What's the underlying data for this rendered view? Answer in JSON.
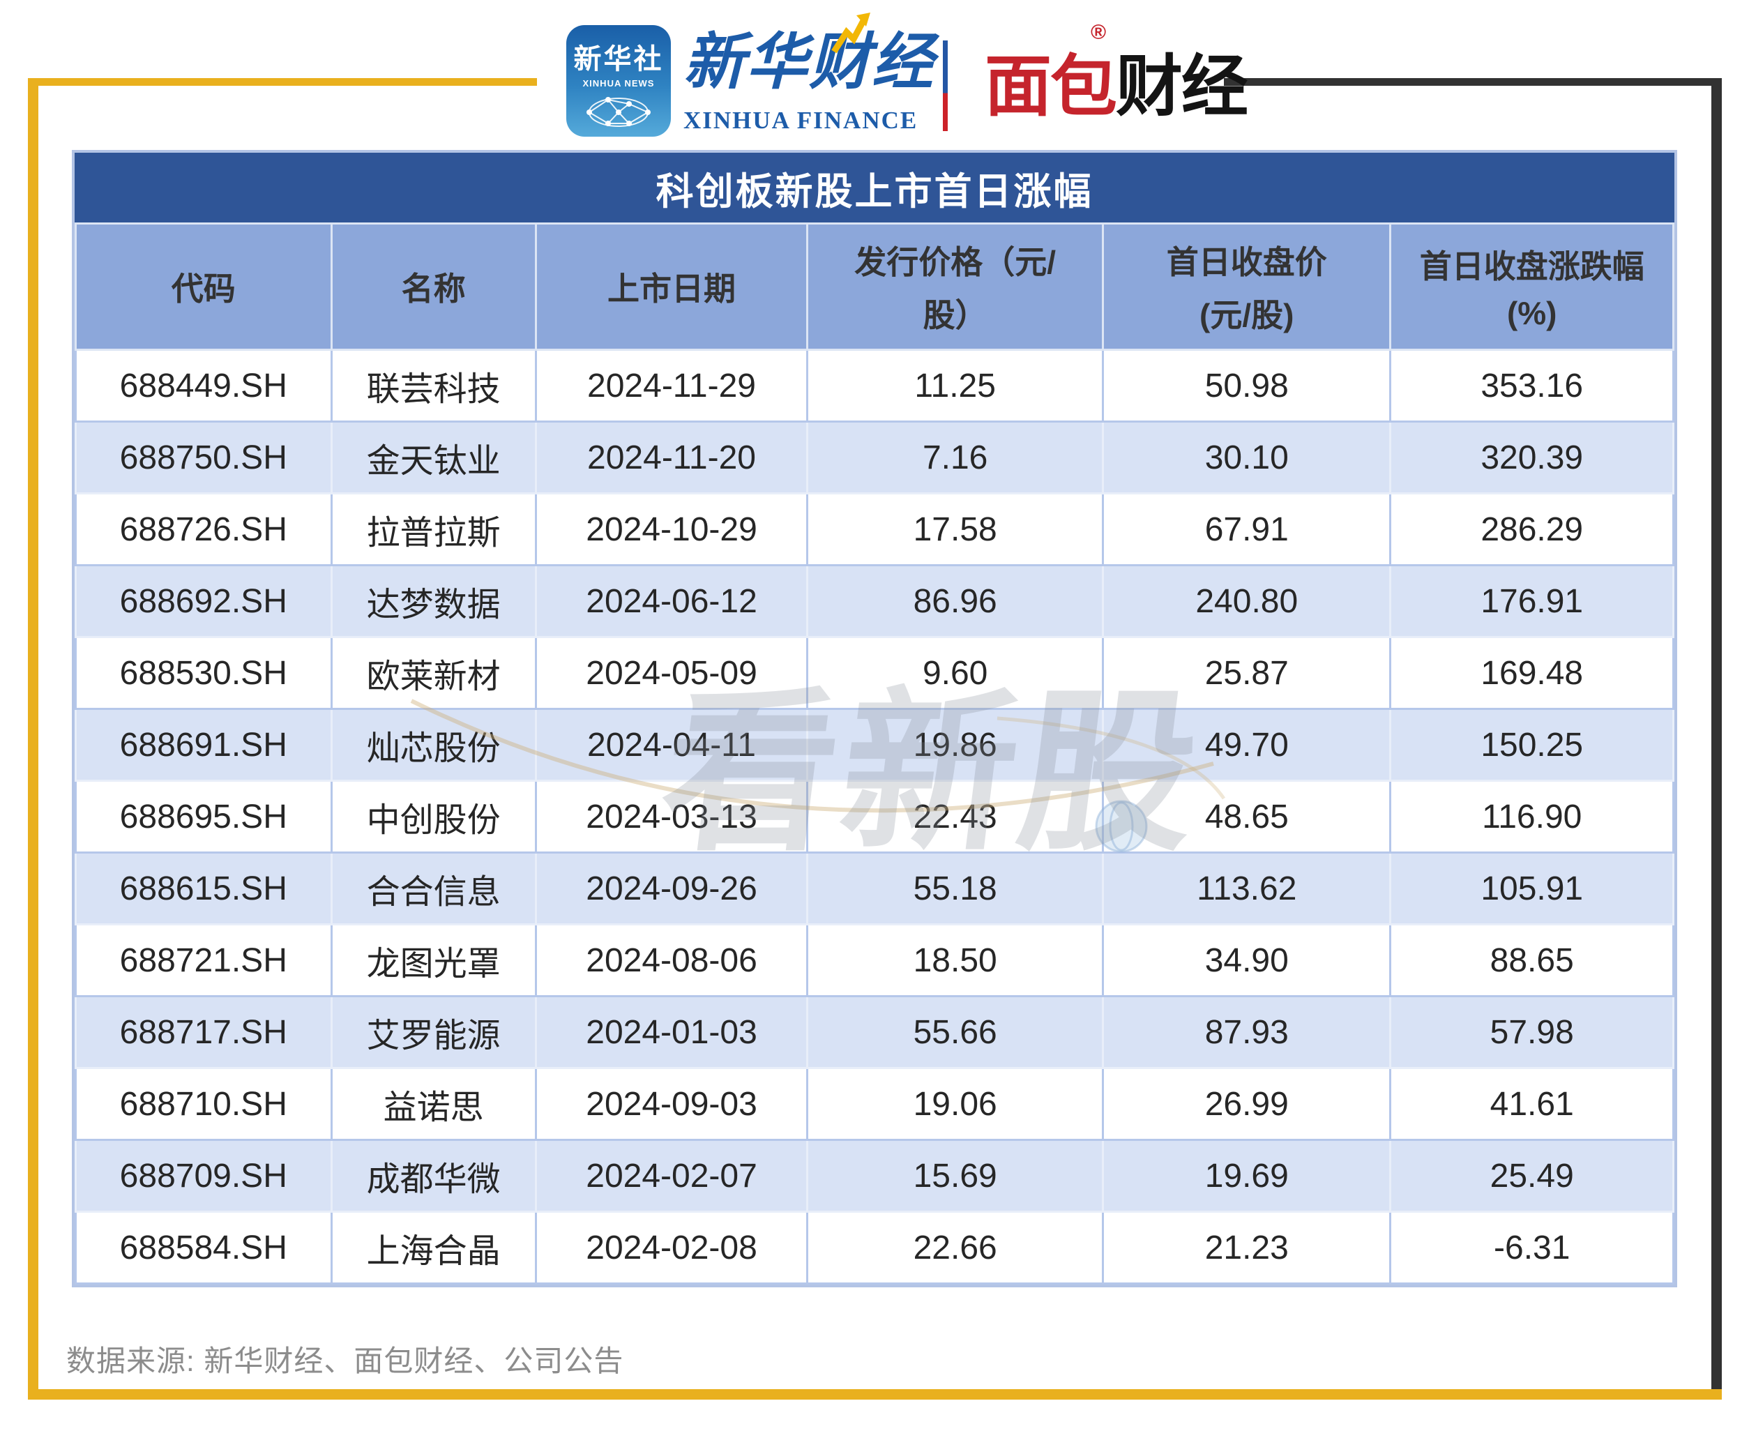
{
  "brand": {
    "xinhua_icon": {
      "cn": "新华社",
      "en": "XINHUA NEWS"
    },
    "xinhua_finance": {
      "cn": "新华财经",
      "en": "XINHUA FINANCE"
    },
    "mianbao_finance": {
      "cn_red": "面包",
      "cn_black": "财经",
      "reg_mark": "®"
    }
  },
  "table": {
    "title": "科创板新股上市首日涨幅",
    "header_lines": [
      [
        "代码",
        ""
      ],
      [
        "名称",
        ""
      ],
      [
        "上市日期",
        ""
      ],
      [
        "发行价格（元/",
        "股）"
      ],
      [
        "首日收盘价",
        "(元/股)"
      ],
      [
        "首日收盘涨跌幅",
        "(%)"
      ]
    ]
  },
  "watermark": {
    "text": "看新股"
  },
  "footer": {
    "source_label": "数据来源: 新华财经、面包财经、公司公告"
  },
  "colors": {
    "accent_gold": "#E9B01E",
    "frame_dark": "#323232",
    "title_bar_blue": "#2F5597",
    "header_bg": "#8CA7DA",
    "row_alt_bg": "#D8E2F5",
    "brand_red": "#C5242C",
    "brand_blue": "#1D5CA9"
  },
  "chart_data": {
    "type": "table",
    "title": "科创板新股上市首日涨幅",
    "columns": [
      "代码",
      "名称",
      "上市日期",
      "发行价格（元/股）",
      "首日收盘价(元/股)",
      "首日收盘涨跌幅(%)"
    ],
    "rows": [
      [
        "688449.SH",
        "联芸科技",
        "2024-11-29",
        "11.25",
        "50.98",
        "353.16"
      ],
      [
        "688750.SH",
        "金天钛业",
        "2024-11-20",
        "7.16",
        "30.10",
        "320.39"
      ],
      [
        "688726.SH",
        "拉普拉斯",
        "2024-10-29",
        "17.58",
        "67.91",
        "286.29"
      ],
      [
        "688692.SH",
        "达梦数据",
        "2024-06-12",
        "86.96",
        "240.80",
        "176.91"
      ],
      [
        "688530.SH",
        "欧莱新材",
        "2024-05-09",
        "9.60",
        "25.87",
        "169.48"
      ],
      [
        "688691.SH",
        "灿芯股份",
        "2024-04-11",
        "19.86",
        "49.70",
        "150.25"
      ],
      [
        "688695.SH",
        "中创股份",
        "2024-03-13",
        "22.43",
        "48.65",
        "116.90"
      ],
      [
        "688615.SH",
        "合合信息",
        "2024-09-26",
        "55.18",
        "113.62",
        "105.91"
      ],
      [
        "688721.SH",
        "龙图光罩",
        "2024-08-06",
        "18.50",
        "34.90",
        "88.65"
      ],
      [
        "688717.SH",
        "艾罗能源",
        "2024-01-03",
        "55.66",
        "87.93",
        "57.98"
      ],
      [
        "688710.SH",
        "益诺思",
        "2024-09-03",
        "19.06",
        "26.99",
        "41.61"
      ],
      [
        "688709.SH",
        "成都华微",
        "2024-02-07",
        "15.69",
        "19.69",
        "25.49"
      ],
      [
        "688584.SH",
        "上海合晶",
        "2024-02-08",
        "22.66",
        "21.23",
        "-6.31"
      ]
    ]
  }
}
